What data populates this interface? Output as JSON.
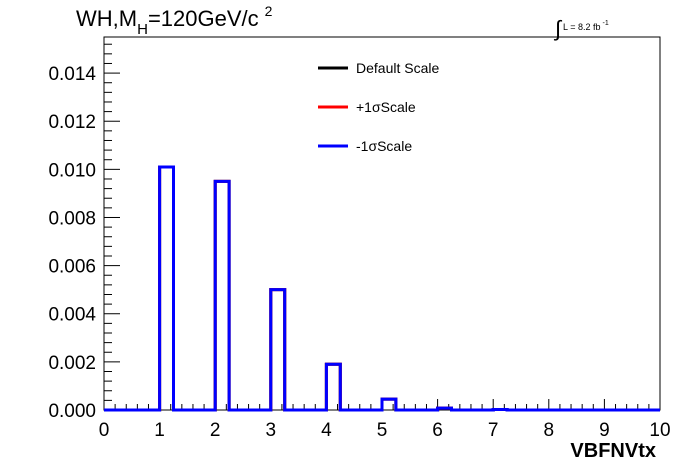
{
  "title": {
    "main": "WH,M",
    "subscript": "H",
    "value": "=120GeV/c",
    "superscript": "2"
  },
  "luminosity": {
    "integral": "∫",
    "text": "L = 8.2 fb",
    "exponent": "-1"
  },
  "chart_data": {
    "type": "step-histogram",
    "xlabel": "VBFNVtx",
    "ylabel": "",
    "xlim": [
      0,
      10
    ],
    "ylim": [
      0,
      0.0155
    ],
    "x_ticks": [
      "0",
      "1",
      "2",
      "3",
      "4",
      "5",
      "6",
      "7",
      "8",
      "9",
      "10"
    ],
    "y_ticks": [
      "0.000",
      "0.002",
      "0.004",
      "0.006",
      "0.008",
      "0.010",
      "0.012",
      "0.014"
    ],
    "y_tick_values": [
      0,
      0.002,
      0.004,
      0.006,
      0.008,
      0.01,
      0.012,
      0.014
    ],
    "bin_width": 0.25,
    "bin_starts": [
      0,
      1,
      2,
      3,
      4,
      5,
      6,
      7
    ],
    "series": [
      {
        "name": "Default Scale",
        "color": "#000000",
        "values": [
          0.0,
          0.0101,
          0.0095,
          0.005,
          0.0019,
          0.00045,
          8e-05,
          2e-05
        ]
      },
      {
        "name": "+1σScale",
        "color": "#ff0000",
        "values": [
          0.0,
          0.0101,
          0.0095,
          0.005,
          0.0019,
          0.00045,
          8e-05,
          2e-05
        ]
      },
      {
        "name": "-1σScale",
        "color": "#0000ff",
        "values": [
          0.0,
          0.0101,
          0.0095,
          0.005,
          0.0019,
          0.00045,
          8e-05,
          2e-05
        ]
      }
    ],
    "legend_position": "top-center",
    "grid": false
  }
}
